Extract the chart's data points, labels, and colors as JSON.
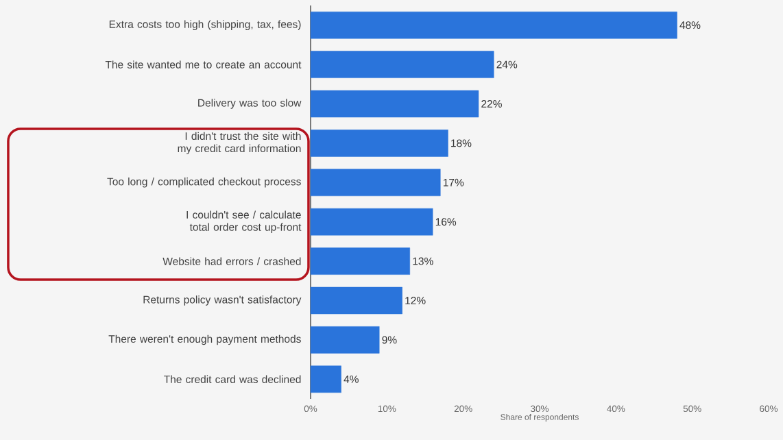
{
  "chart_data": {
    "type": "bar",
    "orientation": "horizontal",
    "xlabel": "Share of respondents",
    "categories": [
      "Extra costs too high (shipping, tax, fees)",
      "The site wanted me to create an account",
      "Delivery was too slow",
      "I didn't trust the site with my credit card information",
      "Too long / complicated checkout process",
      "I couldn't see / calculate total order cost up-front",
      "Website had errors / crashed",
      "Returns policy wasn't satisfactory",
      "There weren't enough payment methods",
      "The credit card was declined"
    ],
    "values": [
      48,
      24,
      22,
      18,
      17,
      16,
      13,
      12,
      9,
      4
    ],
    "value_labels": [
      "48%",
      "24%",
      "22%",
      "18%",
      "17%",
      "16%",
      "13%",
      "12%",
      "9%",
      "4%"
    ],
    "color": "#2a74db",
    "xlim": [
      0,
      60
    ],
    "xticks": [
      {
        "value": 0,
        "label": "0%"
      },
      {
        "value": 10,
        "label": "10%"
      },
      {
        "value": 20,
        "label": "20%"
      },
      {
        "value": 30,
        "label": "30%"
      },
      {
        "value": 40,
        "label": "40%"
      },
      {
        "value": 50,
        "label": "50%"
      },
      {
        "value": 60,
        "label": "60%"
      }
    ]
  }
}
